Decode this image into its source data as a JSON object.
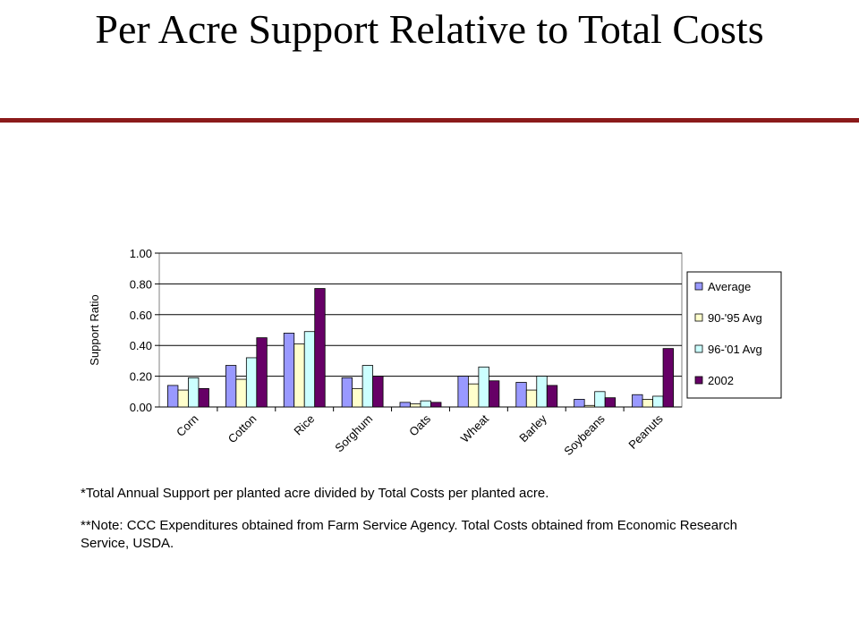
{
  "title": "Per Acre Support Relative to Total Costs",
  "colors": {
    "rule": "#8b1a1a",
    "average": "#9999ff",
    "avg_90_95": "#ffffcc",
    "avg_96_01": "#ccffff",
    "y2002": "#660066"
  },
  "notes": {
    "note1": "*Total Annual Support per planted acre divided by Total Costs per planted acre.",
    "note2": "**Note:  CCC Expenditures obtained from Farm Service Agency.  Total Costs obtained from Economic Research Service, USDA."
  },
  "chart_data": {
    "type": "bar",
    "ylabel": "Support Ratio",
    "ylim": [
      0,
      1
    ],
    "yticks": [
      "0.00",
      "0.20",
      "0.40",
      "0.60",
      "0.80",
      "1.00"
    ],
    "categories": [
      "Corn",
      "Cotton",
      "Rice",
      "Sorghum",
      "Oats",
      "Wheat",
      "Barley",
      "Soybeans",
      "Peanuts"
    ],
    "legend_position": "right",
    "grid": true,
    "series": [
      {
        "name": "Average",
        "color": "#9999ff",
        "values": [
          0.14,
          0.27,
          0.48,
          0.19,
          0.03,
          0.2,
          0.16,
          0.05,
          0.08
        ]
      },
      {
        "name": "90-'95 Avg",
        "color": "#ffffcc",
        "values": [
          0.11,
          0.18,
          0.41,
          0.12,
          0.02,
          0.15,
          0.11,
          0.01,
          0.05
        ]
      },
      {
        "name": "96-'01 Avg",
        "color": "#ccffff",
        "values": [
          0.19,
          0.32,
          0.49,
          0.27,
          0.04,
          0.26,
          0.2,
          0.1,
          0.07
        ]
      },
      {
        "name": "2002",
        "color": "#660066",
        "values": [
          0.12,
          0.45,
          0.77,
          0.2,
          0.03,
          0.17,
          0.14,
          0.06,
          0.38
        ]
      }
    ]
  }
}
